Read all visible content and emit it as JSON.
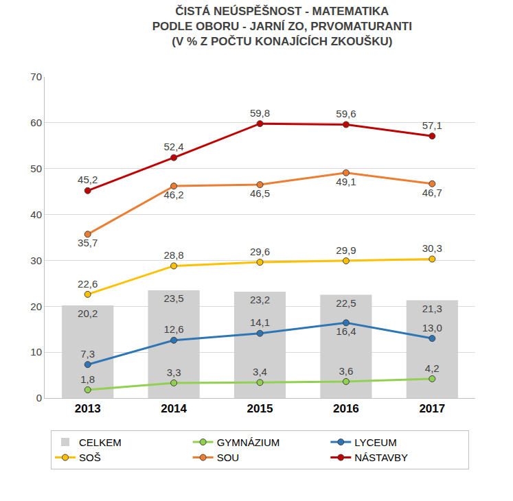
{
  "chart_data": {
    "type": "line",
    "title": "ČISTÁ NEÚSPĚŠNOST - MATEMATIKA\nPODLE OBORU - JARNÍ ZO, PRVOMATURANTI\n(V % Z POČTU KONAJÍCÍCH ZKOUŠKU)",
    "categories": [
      "2013",
      "2014",
      "2015",
      "2016",
      "2017"
    ],
    "series": [
      {
        "name": "CELKEM",
        "type": "bar",
        "color": "#d0d0d0",
        "values": [
          20.2,
          23.5,
          23.2,
          22.5,
          21.3
        ],
        "value_labels": [
          "20,2",
          "23,5",
          "23,2",
          "22,5",
          "21,3"
        ]
      },
      {
        "name": "GYMNÁZIUM",
        "color": "#92d050",
        "marker": "circle",
        "line_style": "solid",
        "values": [
          1.8,
          3.3,
          3.4,
          3.6,
          4.2
        ],
        "value_labels": [
          "1,8",
          "3,3",
          "3,4",
          "3,6",
          "4,2"
        ]
      },
      {
        "name": "LYCEUM",
        "color": "#2e75b6",
        "marker": "circle",
        "line_style": "solid",
        "values": [
          7.3,
          12.6,
          14.1,
          16.4,
          13.0
        ],
        "value_labels": [
          "7,3",
          "12,6",
          "14,1",
          "16,4",
          "13,0"
        ]
      },
      {
        "name": "SOŠ",
        "color": "#ffc000",
        "marker": "circle",
        "line_style": "solid",
        "values": [
          22.6,
          28.8,
          29.6,
          29.9,
          30.3
        ],
        "value_labels": [
          "22,6",
          "28,8",
          "29,6",
          "29,9",
          "30,3"
        ]
      },
      {
        "name": "SOU",
        "color": "#ed7d31",
        "marker": "circle",
        "line_style": "solid",
        "values": [
          35.7,
          46.2,
          46.5,
          49.1,
          46.7
        ],
        "value_labels": [
          "35,7",
          "46,2",
          "46,5",
          "49,1",
          "46,7"
        ]
      },
      {
        "name": "NÁSTAVBY",
        "color": "#c00000",
        "marker": "circle",
        "line_style": "solid",
        "values": [
          45.2,
          52.4,
          59.8,
          59.6,
          57.1
        ],
        "value_labels": [
          "45,2",
          "52,4",
          "59,8",
          "59,6",
          "57,1"
        ]
      }
    ],
    "ylim": [
      0,
      70
    ],
    "yticks": [
      0,
      10,
      20,
      30,
      40,
      50,
      60,
      70
    ],
    "grid": true,
    "legend": "bottom",
    "data_labels": true
  }
}
